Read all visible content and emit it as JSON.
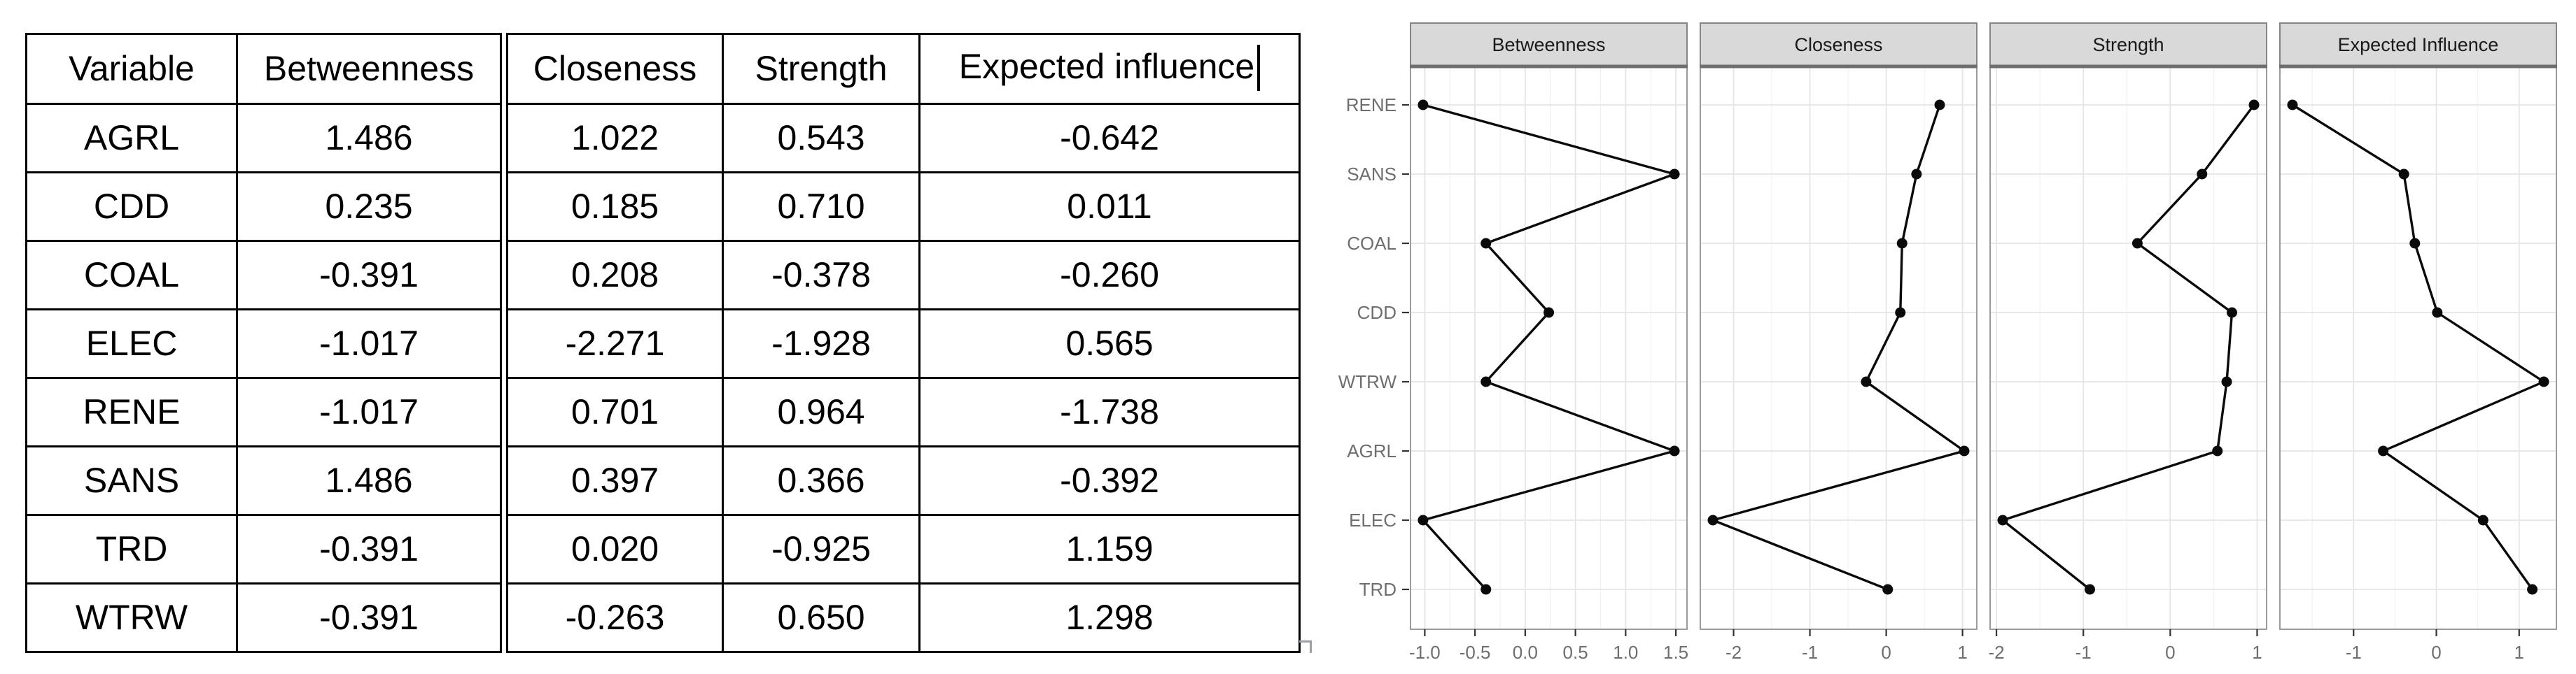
{
  "window": {
    "background": "#ffffff"
  },
  "table": {
    "columns": [
      "Variable",
      "Betweenness",
      "Closeness",
      "Strength",
      "Expected influence"
    ],
    "header_caret_after_last": true,
    "rows": [
      {
        "variable": "AGRL",
        "values": [
          "1.486",
          "1.022",
          "0.543",
          "-0.642"
        ]
      },
      {
        "variable": "CDD",
        "values": [
          "0.235",
          "0.185",
          "0.710",
          "0.011"
        ]
      },
      {
        "variable": "COAL",
        "values": [
          "-0.391",
          "0.208",
          "-0.378",
          "-0.260"
        ]
      },
      {
        "variable": "ELEC",
        "values": [
          "-1.017",
          "-2.271",
          "-1.928",
          "0.565"
        ]
      },
      {
        "variable": "RENE",
        "values": [
          "-1.017",
          "0.701",
          "0.964",
          "-1.738"
        ]
      },
      {
        "variable": "SANS",
        "values": [
          "1.486",
          "0.397",
          "0.366",
          "-0.392"
        ]
      },
      {
        "variable": "TRD",
        "values": [
          "-0.391",
          "0.020",
          "-0.925",
          "1.159"
        ]
      },
      {
        "variable": "WTRW",
        "values": [
          "-0.391",
          "-0.263",
          "0.650",
          "1.298"
        ]
      }
    ]
  },
  "chart_data": {
    "type": "line",
    "description": "Faceted centrality plot: one dot-and-line panel per measure, categorical y-axis shared on left, ggplot2 style",
    "categories_top_to_bottom": [
      "RENE",
      "SANS",
      "COAL",
      "CDD",
      "WTRW",
      "AGRL",
      "ELEC",
      "TRD"
    ],
    "panels": [
      {
        "title": "Betweenness",
        "values": [
          -1.017,
          1.486,
          -0.391,
          0.235,
          -0.391,
          1.486,
          -1.017,
          -0.391
        ],
        "ticks": [
          -1.0,
          -0.5,
          0.0,
          0.5,
          1.0,
          1.5
        ],
        "tick_labels": [
          "-1.0",
          "-0.5",
          "0.0",
          "0.5",
          "1.0",
          "1.5"
        ],
        "minor_step": 0.25,
        "xlim": [
          -1.142,
          1.611
        ]
      },
      {
        "title": "Closeness",
        "values": [
          0.701,
          0.397,
          0.208,
          0.185,
          -0.263,
          1.022,
          -2.271,
          0.02
        ],
        "ticks": [
          -2,
          -1,
          0,
          1
        ],
        "tick_labels": [
          "-2",
          "-1",
          "0",
          "1"
        ],
        "minor_step": 0.5,
        "xlim": [
          -2.436,
          1.187
        ]
      },
      {
        "title": "Strength",
        "values": [
          0.964,
          0.366,
          -0.378,
          0.71,
          0.65,
          0.543,
          -1.928,
          -0.925
        ],
        "ticks": [
          -2,
          -1,
          0,
          1
        ],
        "tick_labels": [
          "-2",
          "-1",
          "0",
          "1"
        ],
        "minor_step": 0.5,
        "xlim": [
          -2.073,
          1.109
        ]
      },
      {
        "title": "Expected Influence",
        "values": [
          -1.738,
          -0.392,
          -0.26,
          0.011,
          1.298,
          -0.642,
          0.565,
          1.159
        ],
        "ticks": [
          -1,
          0,
          1
        ],
        "tick_labels": [
          "-1",
          "0",
          "1"
        ],
        "minor_step": 0.5,
        "xlim": [
          -1.89,
          1.45
        ]
      }
    ],
    "legend": "none",
    "grid": "major and minor vertical, major horizontal per category",
    "styles": {
      "strip_fill": "#d9d9d9",
      "strip_border": "#858585",
      "strip_bottom_edge": "#6e6e6e",
      "strip_text": "#1a1a1a",
      "panel_border": "#9b9b9b",
      "grid_major": "#e4e4e4",
      "grid_minor": "#f1f1f1",
      "point_color": "#0a0a0a",
      "line_color": "#0a0a0a",
      "axis_text": "#6e6e6e",
      "tick_mark": "#333333"
    }
  }
}
